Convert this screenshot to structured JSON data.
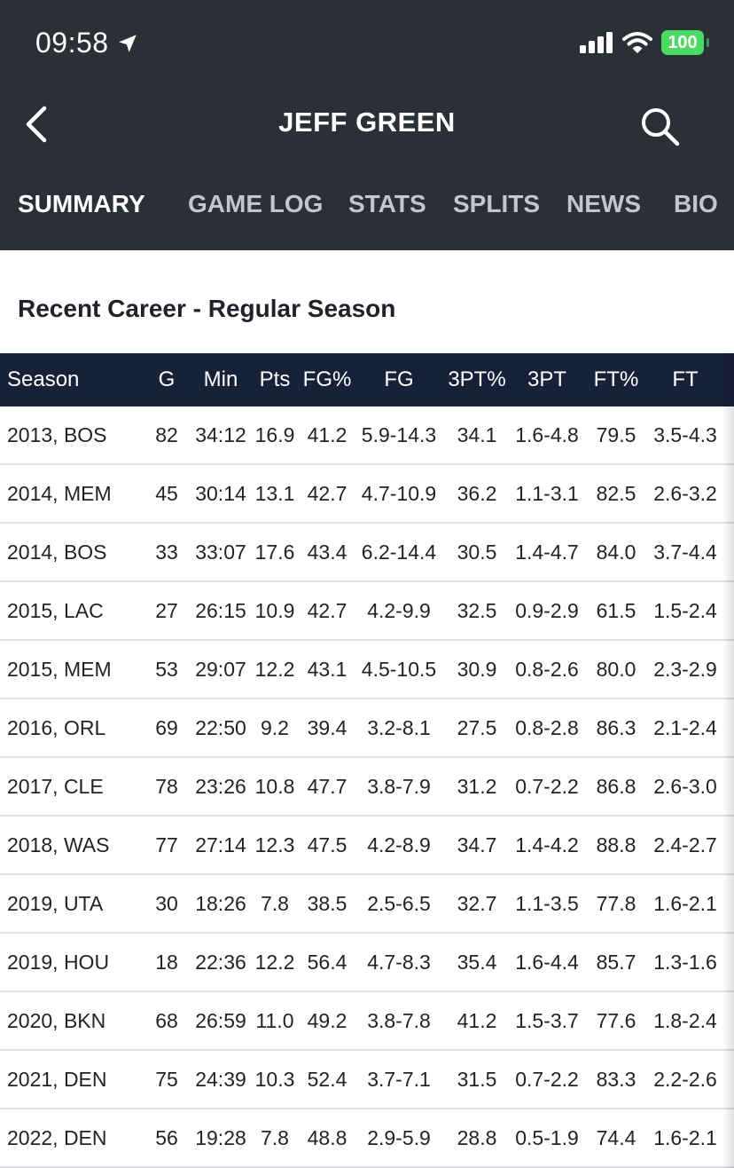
{
  "status": {
    "time": "09:58",
    "battery": "100"
  },
  "header": {
    "title": "JEFF GREEN"
  },
  "tabs": [
    {
      "label": "SUMMARY",
      "active": true
    },
    {
      "label": "GAME LOG",
      "active": false
    },
    {
      "label": "STATS",
      "active": false
    },
    {
      "label": "SPLITS",
      "active": false
    },
    {
      "label": "NEWS",
      "active": false
    },
    {
      "label": "BIO",
      "active": false
    }
  ],
  "section": {
    "title": "Recent Career - Regular Season"
  },
  "table": {
    "columns": [
      "Season",
      "G",
      "Min",
      "Pts",
      "FG%",
      "FG",
      "3PT%",
      "3PT",
      "FT%",
      "FT"
    ],
    "rows": [
      [
        "2013, BOS",
        "82",
        "34:12",
        "16.9",
        "41.2",
        "5.9-14.3",
        "34.1",
        "1.6-4.8",
        "79.5",
        "3.5-4.3"
      ],
      [
        "2014, MEM",
        "45",
        "30:14",
        "13.1",
        "42.7",
        "4.7-10.9",
        "36.2",
        "1.1-3.1",
        "82.5",
        "2.6-3.2"
      ],
      [
        "2014, BOS",
        "33",
        "33:07",
        "17.6",
        "43.4",
        "6.2-14.4",
        "30.5",
        "1.4-4.7",
        "84.0",
        "3.7-4.4"
      ],
      [
        "2015, LAC",
        "27",
        "26:15",
        "10.9",
        "42.7",
        "4.2-9.9",
        "32.5",
        "0.9-2.9",
        "61.5",
        "1.5-2.4"
      ],
      [
        "2015, MEM",
        "53",
        "29:07",
        "12.2",
        "43.1",
        "4.5-10.5",
        "30.9",
        "0.8-2.6",
        "80.0",
        "2.3-2.9"
      ],
      [
        "2016, ORL",
        "69",
        "22:50",
        "9.2",
        "39.4",
        "3.2-8.1",
        "27.5",
        "0.8-2.8",
        "86.3",
        "2.1-2.4"
      ],
      [
        "2017, CLE",
        "78",
        "23:26",
        "10.8",
        "47.7",
        "3.8-7.9",
        "31.2",
        "0.7-2.2",
        "86.8",
        "2.6-3.0"
      ],
      [
        "2018, WAS",
        "77",
        "27:14",
        "12.3",
        "47.5",
        "4.2-8.9",
        "34.7",
        "1.4-4.2",
        "88.8",
        "2.4-2.7"
      ],
      [
        "2019, UTA",
        "30",
        "18:26",
        "7.8",
        "38.5",
        "2.5-6.5",
        "32.7",
        "1.1-3.5",
        "77.8",
        "1.6-2.1"
      ],
      [
        "2019, HOU",
        "18",
        "22:36",
        "12.2",
        "56.4",
        "4.7-8.3",
        "35.4",
        "1.6-4.4",
        "85.7",
        "1.3-1.6"
      ],
      [
        "2020, BKN",
        "68",
        "26:59",
        "11.0",
        "49.2",
        "3.8-7.8",
        "41.2",
        "1.5-3.7",
        "77.6",
        "1.8-2.4"
      ],
      [
        "2021, DEN",
        "75",
        "24:39",
        "10.3",
        "52.4",
        "3.7-7.1",
        "31.5",
        "0.7-2.2",
        "83.3",
        "2.2-2.6"
      ],
      [
        "2022, DEN",
        "56",
        "19:28",
        "7.8",
        "48.8",
        "2.9-5.9",
        "28.8",
        "0.5-1.9",
        "74.4",
        "1.6-2.1"
      ]
    ]
  },
  "colors": {
    "header_bg": "#2b2f36",
    "table_header_bg": "#172138",
    "battery": "#4cd964"
  }
}
